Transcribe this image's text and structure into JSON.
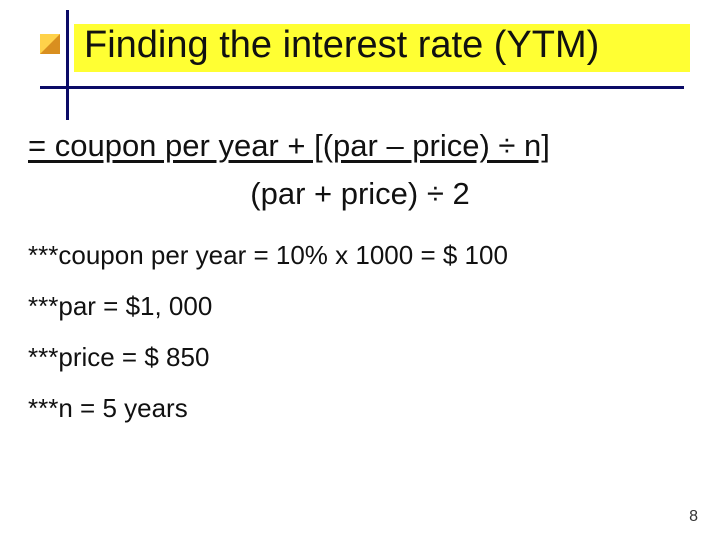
{
  "colors": {
    "highlight": "#ffff33",
    "rule": "#0a0a66",
    "square_light": "#ffd24a",
    "square_dark": "#d98f1f",
    "title_text": "#111111",
    "body_text": "#111111"
  },
  "title": "Finding the interest rate (YTM)",
  "formula": {
    "numerator": "= coupon per year + [(par – price) ÷ n]",
    "denominator": "(par + price) ÷ 2"
  },
  "notes": [
    "***coupon per year = 10% x 1000 =  $ 100",
    "***par = $1, 000",
    "***price = $ 850",
    "***n = 5 years"
  ],
  "page_number": "8"
}
